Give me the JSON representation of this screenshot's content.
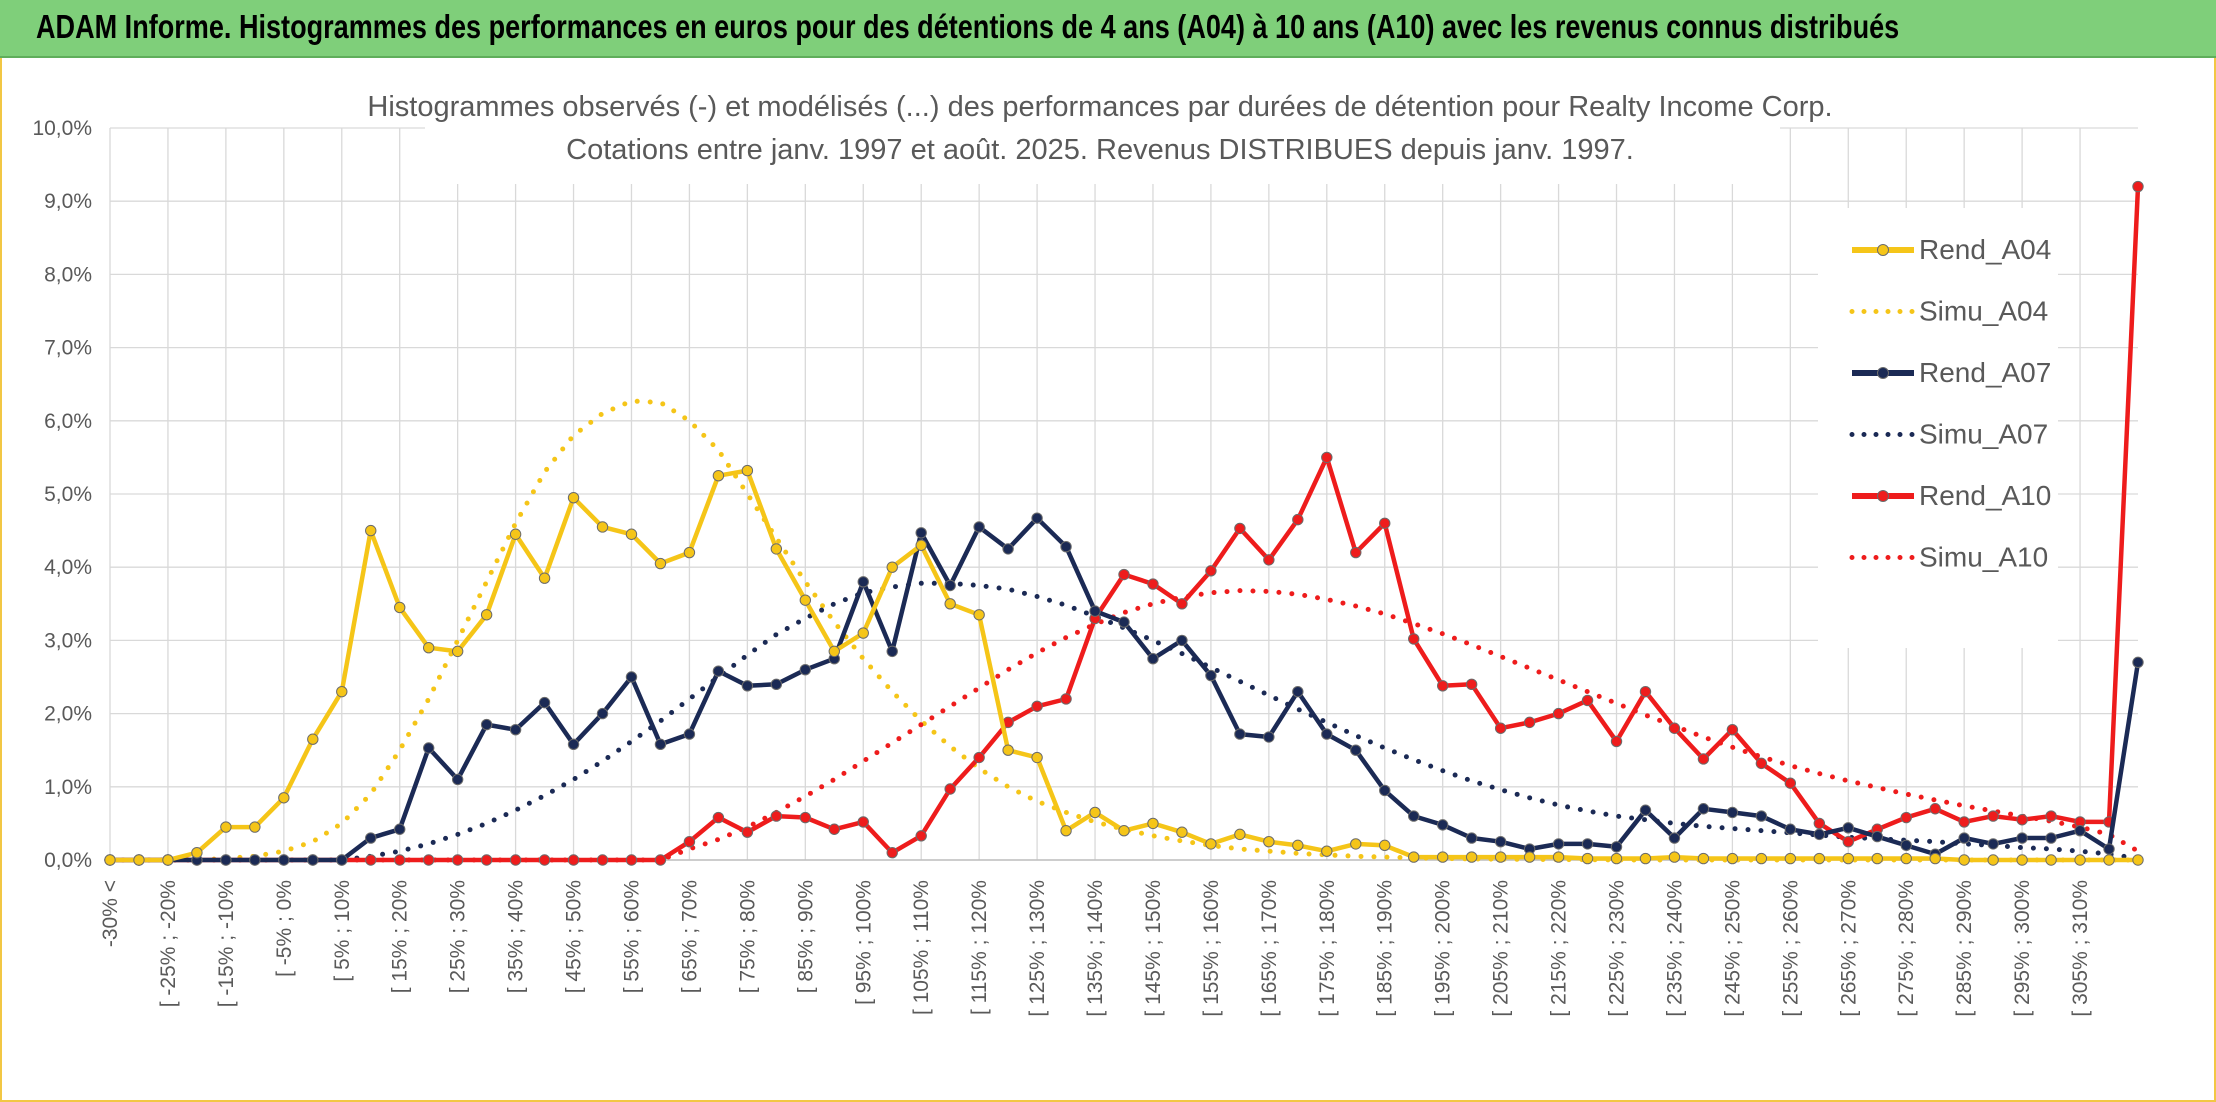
{
  "header": {
    "title": "ADAM Informe. Histogrammes des performances en euros pour des détentions de 4 ans (A04) à 10 ans (A10) avec les revenus connus distribués",
    "banner_color": "#7fcf7a"
  },
  "chart_data": {
    "type": "line",
    "title": "Histogrammes observés (-) et modélisés (...) des performances par durées de détention pour Realty Income Corp.",
    "subtitle": "Cotations entre janv. 1997 et août. 2025. Revenus DISTRIBUES depuis janv. 1997.",
    "xlabel": "",
    "ylabel": "",
    "ylim": [
      0,
      10
    ],
    "y_ticks": [
      "0,0%",
      "1,0%",
      "2,0%",
      "3,0%",
      "4,0%",
      "5,0%",
      "6,0%",
      "7,0%",
      "8,0%",
      "9,0%",
      "10,0%"
    ],
    "grid": true,
    "legend_position": "right",
    "x_labels": [
      "-30% <",
      "[ -25% ; -20%",
      "[ -15% ; -10%",
      "[ -5% ; 0%",
      "[ 5% ; 10%",
      "[ 15% ; 20%",
      "[ 25% ; 30%",
      "[ 35% ; 40%",
      "[ 45% ; 50%",
      "[ 55% ; 60%",
      "[ 65% ; 70%",
      "[ 75% ; 80%",
      "[ 85% ; 90%",
      "[ 95% ; 100%",
      "[ 105% ; 110%",
      "[ 115% ; 120%",
      "[ 125% ; 130%",
      "[ 135% ; 140%",
      "[ 145% ; 150%",
      "[ 155% ; 160%",
      "[ 165% ; 170%",
      "[ 175% ; 180%",
      "[ 185% ; 190%",
      "[ 195% ; 200%",
      "[ 205% ; 210%",
      "[ 215% ; 220%",
      "[ 225% ; 230%",
      "[ 235% ; 240%",
      "[ 245% ; 250%",
      "[ 255% ; 260%",
      "[ 265% ; 270%",
      "[ 275% ; 280%",
      "[ 285% ; 290%",
      "[ 295% ; 300%",
      "[ 305% ; 310%"
    ],
    "series": [
      {
        "name": "Rend_A04",
        "color": "#f5c518",
        "style": "solid",
        "values": [
          0,
          0,
          0,
          0.1,
          0.45,
          0.45,
          0.85,
          1.65,
          2.3,
          4.5,
          3.45,
          2.9,
          2.85,
          3.35,
          4.45,
          3.85,
          4.95,
          4.55,
          4.45,
          4.05,
          4.2,
          5.25,
          5.32,
          4.25,
          3.55,
          2.85,
          3.1,
          4.0,
          4.3,
          3.5,
          3.35,
          1.5,
          1.4,
          0.4,
          0.65,
          0.4,
          0.5,
          0.38,
          0.22,
          0.35,
          0.25,
          0.2,
          0.12,
          0.22,
          0.2,
          0.04,
          0.04,
          0.04,
          0.04,
          0.04,
          0.04,
          0.02,
          0.02,
          0.02,
          0.04,
          0.02,
          0.02,
          0.02,
          0.02,
          0.02,
          0.02,
          0.02,
          0.02,
          0.02,
          0,
          0,
          0,
          0,
          0,
          0,
          0
        ]
      },
      {
        "name": "Simu_A04",
        "color": "#f5c518",
        "style": "dotted",
        "values": [
          0,
          0,
          0,
          0,
          0.02,
          0.05,
          0.12,
          0.25,
          0.5,
          0.9,
          1.5,
          2.2,
          3.0,
          3.8,
          4.6,
          5.3,
          5.8,
          6.1,
          6.27,
          6.25,
          6.0,
          5.6,
          5.0,
          4.4,
          3.8,
          3.25,
          2.75,
          2.3,
          1.9,
          1.55,
          1.25,
          1.0,
          0.8,
          0.65,
          0.52,
          0.42,
          0.33,
          0.26,
          0.2,
          0.15,
          0.12,
          0.09,
          0.07,
          0.05,
          0.04,
          0.03,
          0.02,
          0.015,
          0.01,
          0.01,
          0.005,
          0.005,
          0,
          0,
          0,
          0,
          0,
          0,
          0,
          0,
          0,
          0,
          0,
          0,
          0,
          0,
          0,
          0,
          0,
          0,
          0
        ]
      },
      {
        "name": "Rend_A07",
        "color": "#1b2a55",
        "style": "solid",
        "values": [
          0,
          0,
          0,
          0,
          0,
          0,
          0,
          0,
          0,
          0.3,
          0.42,
          1.53,
          1.1,
          1.85,
          1.78,
          2.15,
          1.58,
          2.0,
          2.5,
          1.58,
          1.72,
          2.58,
          2.38,
          2.4,
          2.6,
          2.75,
          3.8,
          2.85,
          4.47,
          3.75,
          4.55,
          4.25,
          4.67,
          4.28,
          3.4,
          3.25,
          2.75,
          3.0,
          2.52,
          1.72,
          1.68,
          2.3,
          1.72,
          1.5,
          0.95,
          0.6,
          0.48,
          0.3,
          0.25,
          0.15,
          0.22,
          0.22,
          0.18,
          0.68,
          0.3,
          0.7,
          0.65,
          0.6,
          0.42,
          0.35,
          0.44,
          0.32,
          0.2,
          0.08,
          0.3,
          0.22,
          0.3,
          0.3,
          0.4,
          0.15,
          2.7
        ]
      },
      {
        "name": "Simu_A07",
        "color": "#1b2a55",
        "style": "dotted",
        "values": [
          0,
          0,
          0,
          0,
          0,
          0,
          0,
          0,
          0,
          0.05,
          0.12,
          0.22,
          0.35,
          0.5,
          0.68,
          0.88,
          1.1,
          1.35,
          1.62,
          1.9,
          2.2,
          2.5,
          2.8,
          3.08,
          3.3,
          3.5,
          3.65,
          3.73,
          3.78,
          3.78,
          3.75,
          3.7,
          3.6,
          3.48,
          3.33,
          3.17,
          3.0,
          2.82,
          2.63,
          2.44,
          2.25,
          2.06,
          1.88,
          1.7,
          1.53,
          1.37,
          1.22,
          1.08,
          0.96,
          0.85,
          0.75,
          0.67,
          0.6,
          0.55,
          0.5,
          0.46,
          0.43,
          0.4,
          0.37,
          0.34,
          0.31,
          0.29,
          0.27,
          0.25,
          0.22,
          0.2,
          0.17,
          0.15,
          0.12,
          0.08,
          0.02
        ]
      },
      {
        "name": "Rend_A10",
        "color": "#ee1c1c",
        "style": "solid",
        "values": [
          0,
          0,
          0,
          0,
          0,
          0,
          0,
          0,
          0,
          0,
          0,
          0,
          0,
          0,
          0,
          0,
          0,
          0,
          0,
          0,
          0.25,
          0.58,
          0.38,
          0.6,
          0.58,
          0.42,
          0.52,
          0.1,
          0.33,
          0.97,
          1.4,
          1.88,
          2.1,
          2.2,
          3.3,
          3.9,
          3.77,
          3.5,
          3.95,
          4.53,
          4.1,
          4.65,
          5.5,
          4.2,
          4.6,
          3.02,
          2.38,
          2.4,
          1.8,
          1.88,
          2.0,
          2.18,
          1.62,
          2.3,
          1.8,
          1.38,
          1.78,
          1.32,
          1.05,
          0.5,
          0.25,
          0.42,
          0.58,
          0.7,
          0.52,
          0.6,
          0.55,
          0.6,
          0.52,
          0.52,
          9.2
        ]
      },
      {
        "name": "Simu_A10",
        "color": "#ee1c1c",
        "style": "dotted",
        "values": [
          0,
          0,
          0,
          0,
          0,
          0,
          0,
          0,
          0,
          0,
          0,
          0,
          0,
          0,
          0,
          0,
          0,
          0,
          0,
          0,
          0.15,
          0.28,
          0.45,
          0.65,
          0.87,
          1.1,
          1.35,
          1.6,
          1.85,
          2.1,
          2.35,
          2.6,
          2.83,
          3.04,
          3.22,
          3.38,
          3.5,
          3.59,
          3.65,
          3.68,
          3.67,
          3.63,
          3.56,
          3.47,
          3.36,
          3.23,
          3.09,
          2.94,
          2.78,
          2.62,
          2.46,
          2.3,
          2.14,
          1.98,
          1.83,
          1.68,
          1.54,
          1.41,
          1.29,
          1.18,
          1.08,
          0.99,
          0.9,
          0.82,
          0.74,
          0.67,
          0.6,
          0.53,
          0.45,
          0.35,
          0.12
        ]
      }
    ]
  }
}
